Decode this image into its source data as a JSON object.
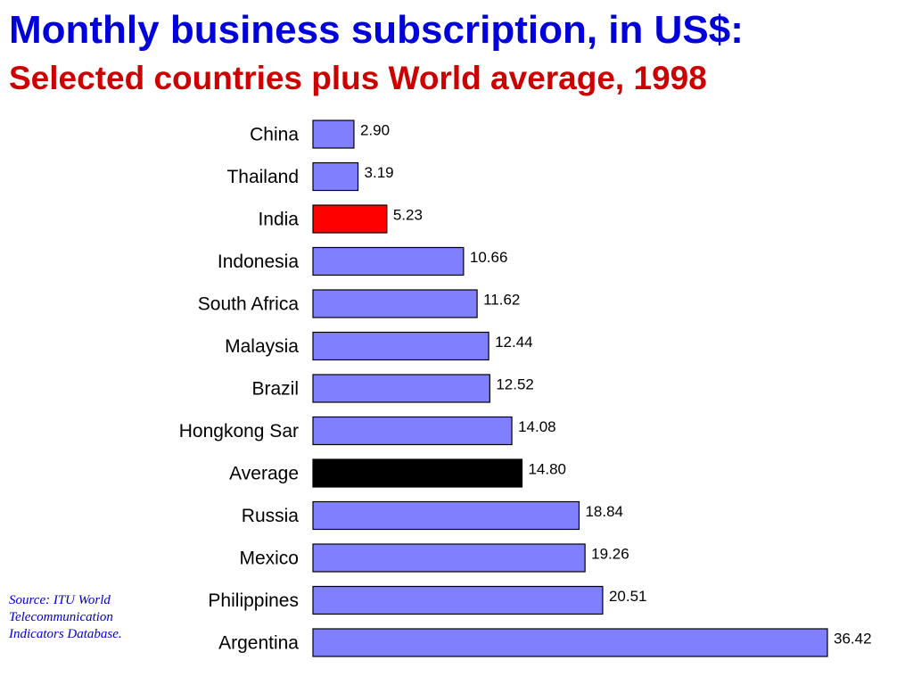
{
  "header": {
    "title": "Monthly business subscription, in US$:",
    "subtitle": "Selected countries plus World average, 1998",
    "title_color": "#0000dd",
    "subtitle_color": "#cc0000"
  },
  "source_note": {
    "lines": [
      "Source: ITU World",
      "Telecommunication",
      "Indicators Database."
    ],
    "color": "#0000cc"
  },
  "chart_data": {
    "type": "bar",
    "orientation": "horizontal",
    "title": "Monthly business subscription, in US$:",
    "subtitle": "Selected countries plus World average, 1998",
    "xlabel": "",
    "ylabel": "",
    "grid": false,
    "legend": "none",
    "xlim": [
      0,
      36.42
    ],
    "categories": [
      "China",
      "Thailand",
      "India",
      "Indonesia",
      "South Africa",
      "Malaysia",
      "Brazil",
      "Hongkong Sar",
      "Average",
      "Russia",
      "Mexico",
      "Philippines",
      "Argentina"
    ],
    "values": [
      2.9,
      3.19,
      5.23,
      10.66,
      11.62,
      12.44,
      12.52,
      14.08,
      14.8,
      18.84,
      19.26,
      20.51,
      36.42
    ],
    "value_labels": [
      "2.90",
      "3.19",
      "5.23",
      "10.66",
      "11.62",
      "12.44",
      "12.52",
      "14.08",
      "14.80",
      "18.84",
      "19.26",
      "20.51",
      "36.42"
    ],
    "bar_colors": [
      "#8080ff",
      "#8080ff",
      "#ff0000",
      "#8080ff",
      "#8080ff",
      "#8080ff",
      "#8080ff",
      "#8080ff",
      "#000000",
      "#8080ff",
      "#8080ff",
      "#8080ff",
      "#8080ff"
    ],
    "default_bar_color": "#8080ff",
    "highlight_colors": {
      "India": "#ff0000",
      "Average": "#000000"
    }
  }
}
